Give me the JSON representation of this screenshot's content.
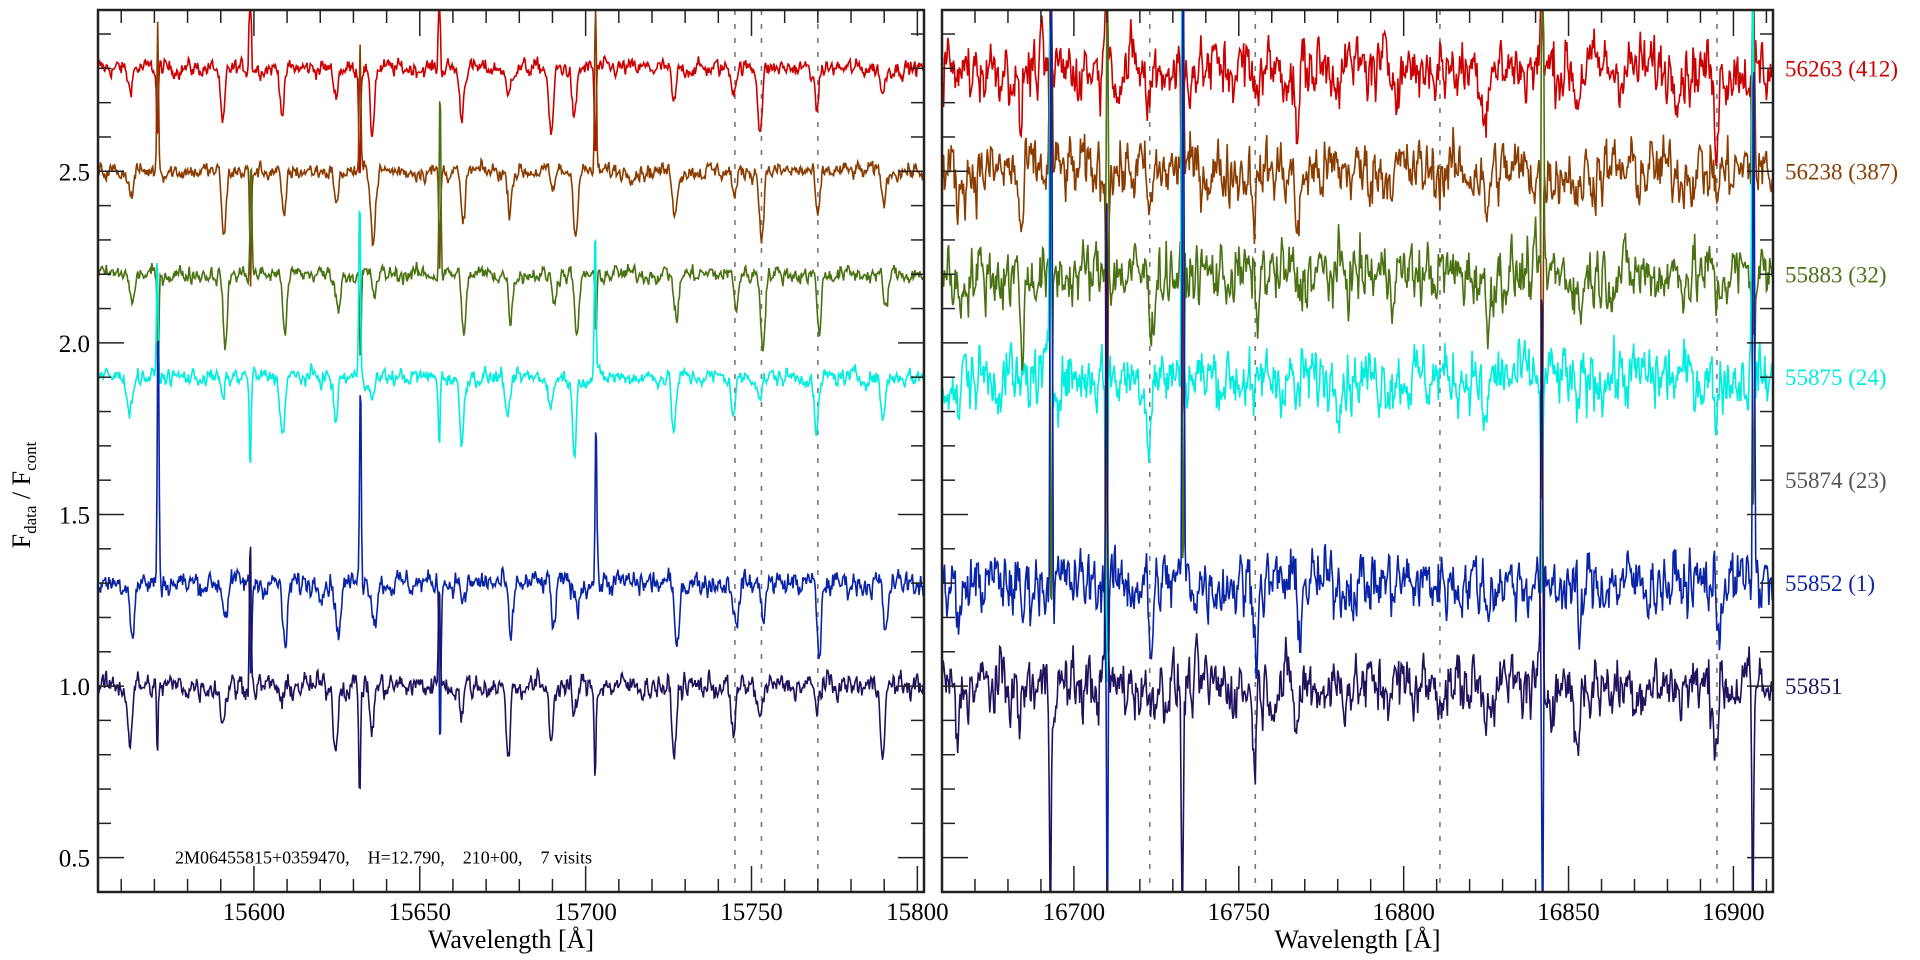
{
  "chart_data": {
    "type": "line",
    "ylabel": {
      "main": "F",
      "sub1": "data",
      "sep": " / F",
      "sub2": "cont"
    },
    "ylim": [
      0.4,
      2.97
    ],
    "yticks": [
      0.5,
      1.0,
      1.5,
      2.0,
      2.5
    ],
    "ytick_labels": [
      "0.5",
      "1.0",
      "1.5",
      "2.0",
      "2.5"
    ],
    "panels": [
      {
        "xlabel": "Wavelength [Å]",
        "xlim": [
          15553,
          15802
        ],
        "xticks": [
          15600,
          15650,
          15700,
          15750,
          15800
        ],
        "xtick_labels": [
          "15600",
          "15650",
          "15700",
          "15750",
          "15800"
        ],
        "dashed_lines": [
          15745,
          15753,
          15770
        ],
        "emission_features": [
          15571,
          15599,
          15632,
          15656,
          15703
        ],
        "absorption_lines": [
          15563,
          15591,
          15609,
          15625,
          15636,
          15663,
          15677,
          15690,
          15697,
          15727,
          15745,
          15753,
          15770,
          15790
        ],
        "noise": 0.012
      },
      {
        "xlabel": "Wavelength [Å]",
        "xlim": [
          16660,
          16912
        ],
        "xticks": [
          16700,
          16750,
          16800,
          16850,
          16900
        ],
        "xtick_labels": [
          "16700",
          "16750",
          "16800",
          "16850",
          "16900"
        ],
        "dashed_lines": [
          16723,
          16755,
          16811,
          16895
        ],
        "emission_features": [
          16693,
          16710,
          16733,
          16842,
          16906
        ],
        "absorption_lines": [
          16665,
          16684,
          16723,
          16755,
          16768,
          16825,
          16853,
          16895
        ],
        "noise": 0.03
      }
    ],
    "series": [
      {
        "name": "56263",
        "label": "56263 (412)",
        "offset": 2.8,
        "color": "#cc0000",
        "drawn": true
      },
      {
        "name": "56238",
        "label": "56238 (387)",
        "offset": 2.5,
        "color": "#8b3d00",
        "drawn": true
      },
      {
        "name": "55883",
        "label": "55883 (32)",
        "offset": 2.2,
        "color": "#4b7212",
        "drawn": true
      },
      {
        "name": "55875",
        "label": "55875 (24)",
        "offset": 1.9,
        "color": "#00eedd",
        "drawn": true
      },
      {
        "name": "55874",
        "label": "55874 (23)",
        "offset": 1.6,
        "color": "#555555",
        "drawn": false
      },
      {
        "name": "55852",
        "label": "55852 (1)",
        "offset": 1.3,
        "color": "#0a24a8",
        "drawn": true
      },
      {
        "name": "55851",
        "label": "55851",
        "offset": 1.0,
        "color": "#22125e",
        "drawn": true
      }
    ],
    "annotation": "2M06455815+0359470,    H=12.790,    210+00,    7 visits"
  }
}
